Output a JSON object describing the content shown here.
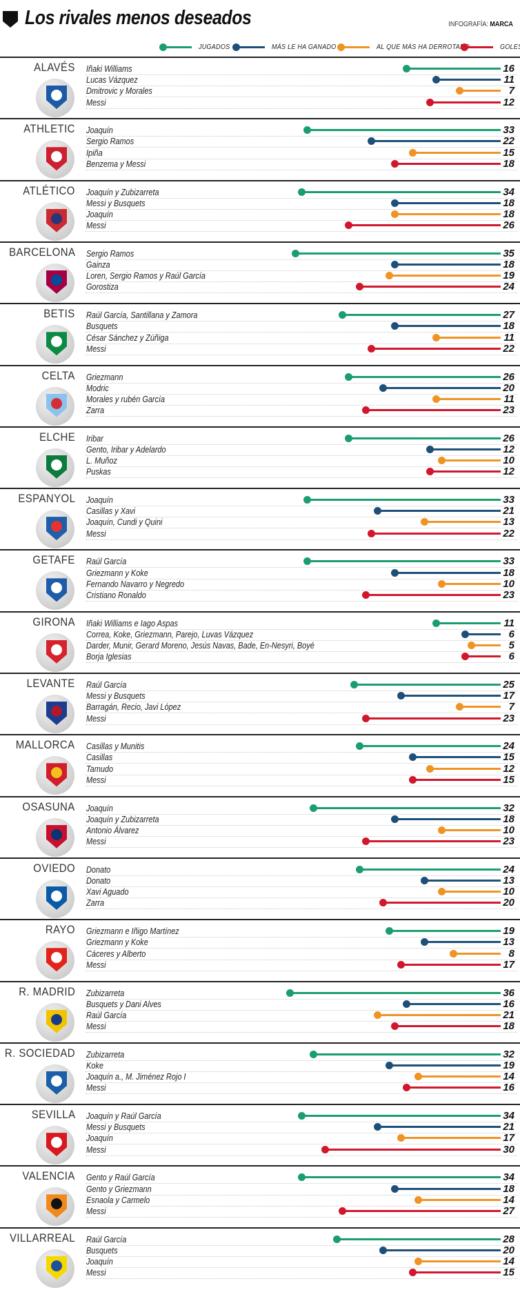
{
  "header": {
    "title": "Los rivales menos deseados",
    "credit_prefix": "INFOGRAFÍA:",
    "credit_source": "MARCA"
  },
  "colors": {
    "jugados": "#1a9e6e",
    "ganado": "#1d4f79",
    "derrotado": "#ef9424",
    "goles": "#d0172b"
  },
  "chart_data": {
    "type": "bar",
    "title": "Los rivales menos deseados",
    "legend_position": "top",
    "xlim": [
      0,
      38
    ],
    "series": [
      {
        "key": "jugados",
        "name": "JUGADOS"
      },
      {
        "key": "ganado",
        "name": "MÁS LE HA GANADO"
      },
      {
        "key": "derrotado",
        "name": "AL QUE MÁS HA DERROTADO"
      },
      {
        "key": "goles",
        "name": "GOLES"
      }
    ],
    "teams": [
      {
        "team": "ALAVÉS",
        "badge_colors": [
          "#1c5aa8",
          "#ffffff"
        ],
        "rows": [
          {
            "series": "jugados",
            "player": "Iñaki Williams",
            "value": 16
          },
          {
            "series": "ganado",
            "player": "Lucas Vázquez",
            "value": 11
          },
          {
            "series": "derrotado",
            "player": "Dmitrovic y Morales",
            "value": 7
          },
          {
            "series": "goles",
            "player": "Messi",
            "value": 12
          }
        ]
      },
      {
        "team": "ATHLETIC",
        "badge_colors": [
          "#cc1f2f",
          "#ffffff"
        ],
        "rows": [
          {
            "series": "jugados",
            "player": "Joaquín",
            "value": 33
          },
          {
            "series": "ganado",
            "player": "Sergio Ramos",
            "value": 22
          },
          {
            "series": "derrotado",
            "player": "Ipiña",
            "value": 15
          },
          {
            "series": "goles",
            "player": "Benzema y Messi",
            "value": 18
          }
        ]
      },
      {
        "team": "ATLÉTICO",
        "badge_colors": [
          "#cb2a2f",
          "#27357b"
        ],
        "rows": [
          {
            "series": "jugados",
            "player": "Joaquín y Zubizarreta",
            "value": 34
          },
          {
            "series": "ganado",
            "player": "Messi y Busquets",
            "value": 18
          },
          {
            "series": "derrotado",
            "player": "Joaquín",
            "value": 18
          },
          {
            "series": "goles",
            "player": "Messi",
            "value": 26
          }
        ]
      },
      {
        "team": "BARCELONA",
        "badge_colors": [
          "#a50044",
          "#004d98"
        ],
        "rows": [
          {
            "series": "jugados",
            "player": "Sergio Ramos",
            "value": 35
          },
          {
            "series": "ganado",
            "player": "Gainza",
            "value": 18
          },
          {
            "series": "derrotado",
            "player": "Loren, Sergio Ramos y Raúl García",
            "value": 19
          },
          {
            "series": "goles",
            "player": "Gorostiza",
            "value": 24
          }
        ]
      },
      {
        "team": "BETIS",
        "badge_colors": [
          "#0b8a45",
          "#ffffff"
        ],
        "rows": [
          {
            "series": "jugados",
            "player": "Raúl García, Santillana y Zamora",
            "value": 27
          },
          {
            "series": "ganado",
            "player": "Busquets",
            "value": 18
          },
          {
            "series": "derrotado",
            "player": "César Sánchez y Zúñiga",
            "value": 11
          },
          {
            "series": "goles",
            "player": "Messi",
            "value": 22
          }
        ]
      },
      {
        "team": "CELTA",
        "badge_colors": [
          "#8ac3ee",
          "#d52d35"
        ],
        "rows": [
          {
            "series": "jugados",
            "player": "Griezmann",
            "value": 26
          },
          {
            "series": "ganado",
            "player": "Modric",
            "value": 20
          },
          {
            "series": "derrotado",
            "player": "Morales y rubén García",
            "value": 11
          },
          {
            "series": "goles",
            "player": "Zarra",
            "value": 23
          }
        ]
      },
      {
        "team": "ELCHE",
        "badge_colors": [
          "#0b7b3e",
          "#ffffff"
        ],
        "rows": [
          {
            "series": "jugados",
            "player": "Iribar",
            "value": 26
          },
          {
            "series": "ganado",
            "player": "Gento, Iribar y Adelardo",
            "value": 12
          },
          {
            "series": "derrotado",
            "player": "L. Muñoz",
            "value": 10
          },
          {
            "series": "goles",
            "player": "Puskas",
            "value": 12
          }
        ]
      },
      {
        "team": "ESPANYOL",
        "badge_colors": [
          "#1e5fa8",
          "#e53333"
        ],
        "rows": [
          {
            "series": "jugados",
            "player": "Joaquín",
            "value": 33
          },
          {
            "series": "ganado",
            "player": "Casillas y Xavi",
            "value": 21
          },
          {
            "series": "derrotado",
            "player": "Joaquín, Cundi y Quini",
            "value": 13
          },
          {
            "series": "goles",
            "player": "Messi",
            "value": 22
          }
        ]
      },
      {
        "team": "GETAFE",
        "badge_colors": [
          "#1d5ca8",
          "#ffffff"
        ],
        "rows": [
          {
            "series": "jugados",
            "player": "Raúl García",
            "value": 33
          },
          {
            "series": "ganado",
            "player": "Griezmann y Koke",
            "value": 18
          },
          {
            "series": "derrotado",
            "player": "Fernando Navarro y Negredo",
            "value": 10
          },
          {
            "series": "goles",
            "player": "Cristiano Ronaldo",
            "value": 23
          }
        ]
      },
      {
        "team": "GIRONA",
        "badge_colors": [
          "#d6222d",
          "#ffffff"
        ],
        "rows": [
          {
            "series": "jugados",
            "player": "Iñaki Williams e Iago Aspas",
            "value": 11
          },
          {
            "series": "ganado",
            "player": "Correa, Koke, Griezmann, Parejo, Luvas Vázquez",
            "value": 6
          },
          {
            "series": "derrotado",
            "player": "Darder, Munir, Gerard Moreno, Jesús Navas, Bade, En-Nesyri, Boyé",
            "value": 5
          },
          {
            "series": "goles",
            "player": "Borja Iglesias",
            "value": 6
          }
        ]
      },
      {
        "team": "LEVANTE",
        "badge_colors": [
          "#1a3d8f",
          "#b2182b"
        ],
        "rows": [
          {
            "series": "jugados",
            "player": "Raúl García",
            "value": 25
          },
          {
            "series": "ganado",
            "player": "Messi y Busquets",
            "value": 17
          },
          {
            "series": "derrotado",
            "player": "Barragán, Recio, Javi López",
            "value": 7
          },
          {
            "series": "goles",
            "player": "Messi",
            "value": 23
          }
        ]
      },
      {
        "team": "MALLORCA",
        "badge_colors": [
          "#d21e2b",
          "#f2c21b"
        ],
        "rows": [
          {
            "series": "jugados",
            "player": "Casillas y Munitis",
            "value": 24
          },
          {
            "series": "ganado",
            "player": "Casillas",
            "value": 15
          },
          {
            "series": "derrotado",
            "player": "Tamudo",
            "value": 12
          },
          {
            "series": "goles",
            "player": "Messi",
            "value": 15
          }
        ]
      },
      {
        "team": "OSASUNA",
        "badge_colors": [
          "#c8102e",
          "#0a346f"
        ],
        "rows": [
          {
            "series": "jugados",
            "player": "Joaquín",
            "value": 32
          },
          {
            "series": "ganado",
            "player": "Joaquín y Zubizarreta",
            "value": 18
          },
          {
            "series": "derrotado",
            "player": "Antonio Álvarez",
            "value": 10
          },
          {
            "series": "goles",
            "player": "Messi",
            "value": 23
          }
        ]
      },
      {
        "team": "OVIEDO",
        "badge_colors": [
          "#0a5aa8",
          "#ffffff"
        ],
        "rows": [
          {
            "series": "jugados",
            "player": "Donato",
            "value": 24
          },
          {
            "series": "ganado",
            "player": "Donato",
            "value": 13
          },
          {
            "series": "derrotado",
            "player": "Xavi Aguado",
            "value": 10
          },
          {
            "series": "goles",
            "player": "Zarra",
            "value": 20
          }
        ]
      },
      {
        "team": "RAYO",
        "badge_colors": [
          "#e2231a",
          "#ffffff"
        ],
        "rows": [
          {
            "series": "jugados",
            "player": "Griezmann e Iñigo Martínez",
            "value": 19
          },
          {
            "series": "ganado",
            "player": "Griezmann y Koke",
            "value": 13
          },
          {
            "series": "derrotado",
            "player": "Cáceres y Alberto",
            "value": 8
          },
          {
            "series": "goles",
            "player": "Messi",
            "value": 17
          }
        ]
      },
      {
        "team": "R. MADRID",
        "badge_colors": [
          "#f2c400",
          "#1a3b8a"
        ],
        "rows": [
          {
            "series": "jugados",
            "player": "Zubizarreta",
            "value": 36
          },
          {
            "series": "ganado",
            "player": "Busquets y Dani Alves",
            "value": 16
          },
          {
            "series": "derrotado",
            "player": "Raúl García",
            "value": 21
          },
          {
            "series": "goles",
            "player": "Messi",
            "value": 18
          }
        ]
      },
      {
        "team": "R. SOCIEDAD",
        "badge_colors": [
          "#1b5fa8",
          "#ffffff"
        ],
        "rows": [
          {
            "series": "jugados",
            "player": "Zubizarreta",
            "value": 32
          },
          {
            "series": "ganado",
            "player": "Koke",
            "value": 19
          },
          {
            "series": "derrotado",
            "player": "Joaquín a., M. Jiménez Rojo I",
            "value": 14
          },
          {
            "series": "goles",
            "player": "Messi",
            "value": 16
          }
        ]
      },
      {
        "team": "SEVILLA",
        "badge_colors": [
          "#d71920",
          "#ffffff"
        ],
        "rows": [
          {
            "series": "jugados",
            "player": "Joaquín y Raúl García",
            "value": 34
          },
          {
            "series": "ganado",
            "player": "Messi y Busquets",
            "value": 21
          },
          {
            "series": "derrotado",
            "player": "Joaquín",
            "value": 17
          },
          {
            "series": "goles",
            "player": "Messi",
            "value": 30
          }
        ]
      },
      {
        "team": "VALENCIA",
        "badge_colors": [
          "#f08a1c",
          "#111111"
        ],
        "rows": [
          {
            "series": "jugados",
            "player": "Gento y Raúl García",
            "value": 34
          },
          {
            "series": "ganado",
            "player": "Gento y Griezmann",
            "value": 18
          },
          {
            "series": "derrotado",
            "player": "Esnaola y Carmelo",
            "value": 14
          },
          {
            "series": "goles",
            "player": "Messi",
            "value": 27
          }
        ]
      },
      {
        "team": "VILLARREAL",
        "badge_colors": [
          "#f5d800",
          "#1d4f9c"
        ],
        "rows": [
          {
            "series": "jugados",
            "player": "Raúl García",
            "value": 28
          },
          {
            "series": "ganado",
            "player": "Busquets",
            "value": 20
          },
          {
            "series": "derrotado",
            "player": "Joaquín",
            "value": 14
          },
          {
            "series": "goles",
            "player": "Messi",
            "value": 15
          }
        ]
      }
    ]
  }
}
